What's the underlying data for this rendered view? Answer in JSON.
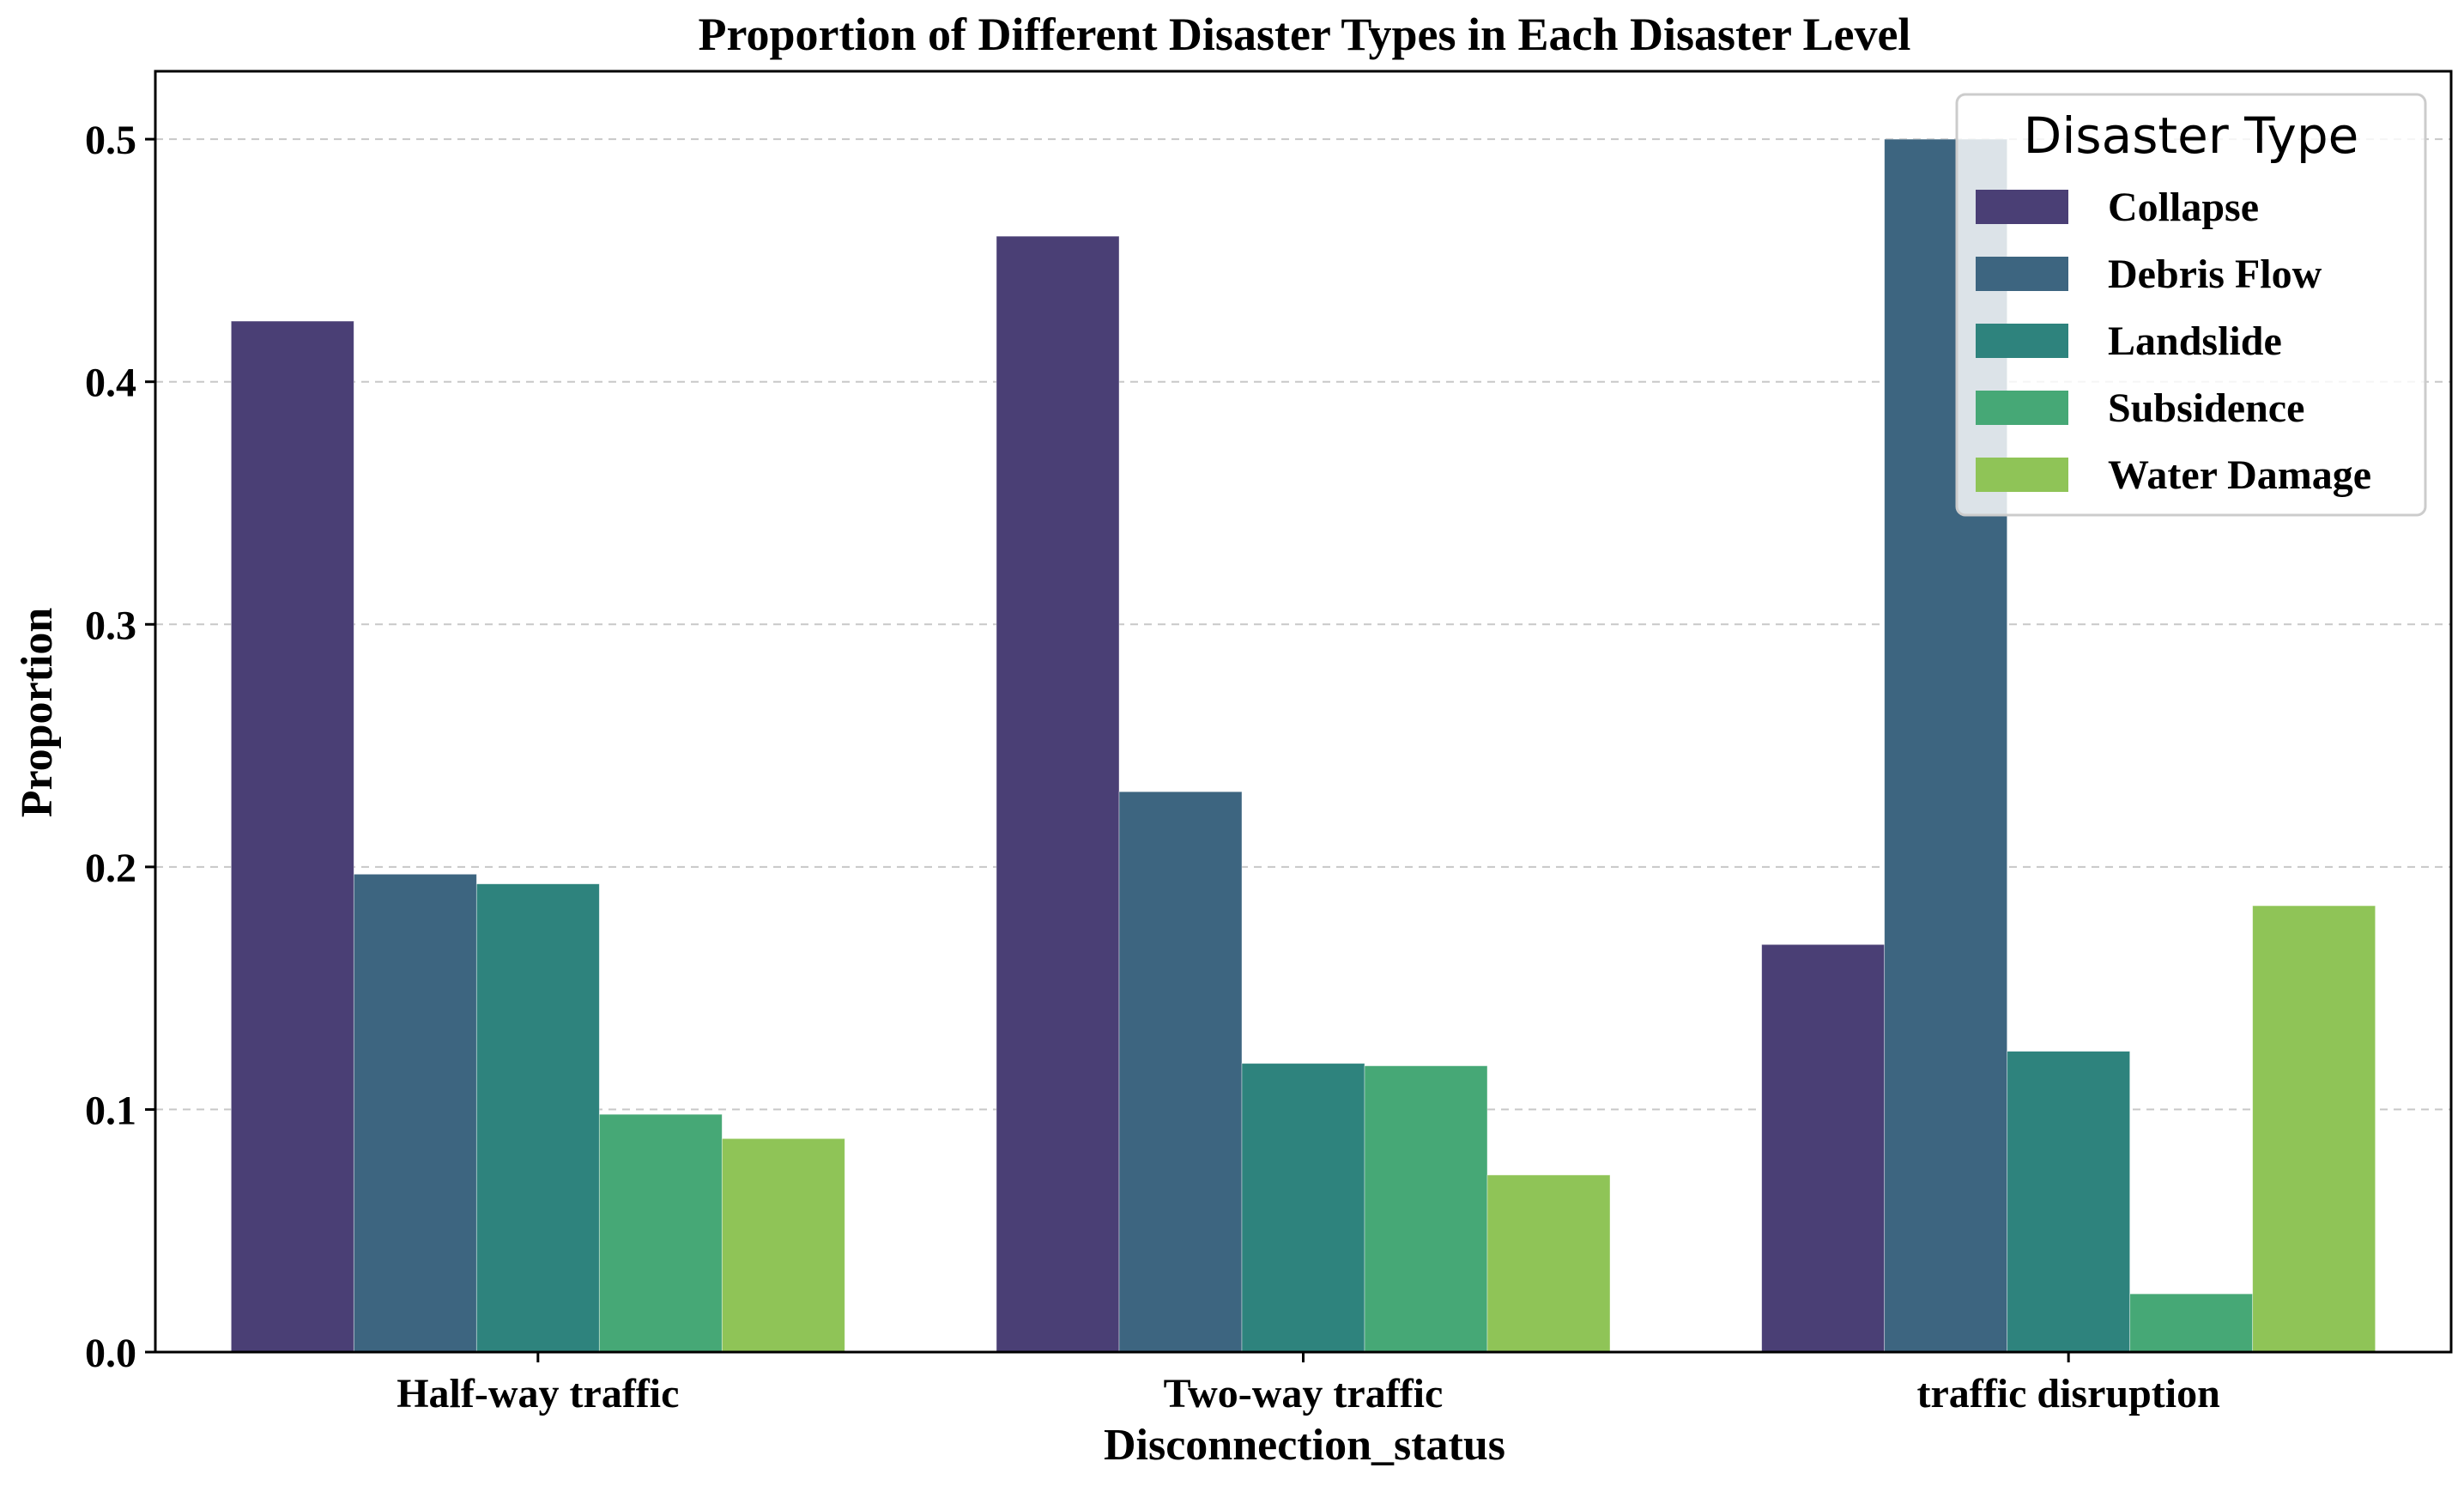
{
  "chart_data": {
    "type": "bar",
    "title": "Proportion of Different Disaster Types in Each Disaster Level",
    "xlabel": "Disconnection_status",
    "ylabel": "Proportion",
    "categories": [
      "Half-way traffic",
      "Two-way traffic",
      "traffic disruption"
    ],
    "ylim": [
      0,
      0.528
    ],
    "yticks": [
      0.0,
      0.1,
      0.2,
      0.3,
      0.4,
      0.5
    ],
    "ytick_labels": [
      "0.0",
      "0.1",
      "0.2",
      "0.3",
      "0.4",
      "0.5"
    ],
    "grid": true,
    "legend": {
      "title": "Disaster Type",
      "placement": "top-right"
    },
    "series": [
      {
        "name": "Collapse",
        "color": "#4a3f75",
        "values": [
          0.425,
          0.46,
          0.168
        ]
      },
      {
        "name": "Debris Flow",
        "color": "#3d6580",
        "values": [
          0.197,
          0.231,
          0.5
        ]
      },
      {
        "name": "Landslide",
        "color": "#2e837d",
        "values": [
          0.193,
          0.119,
          0.124
        ]
      },
      {
        "name": "Subsidence",
        "color": "#46a876",
        "values": [
          0.098,
          0.118,
          0.024
        ]
      },
      {
        "name": "Water Damage",
        "color": "#8fc457",
        "values": [
          0.088,
          0.073,
          0.184
        ]
      }
    ]
  }
}
